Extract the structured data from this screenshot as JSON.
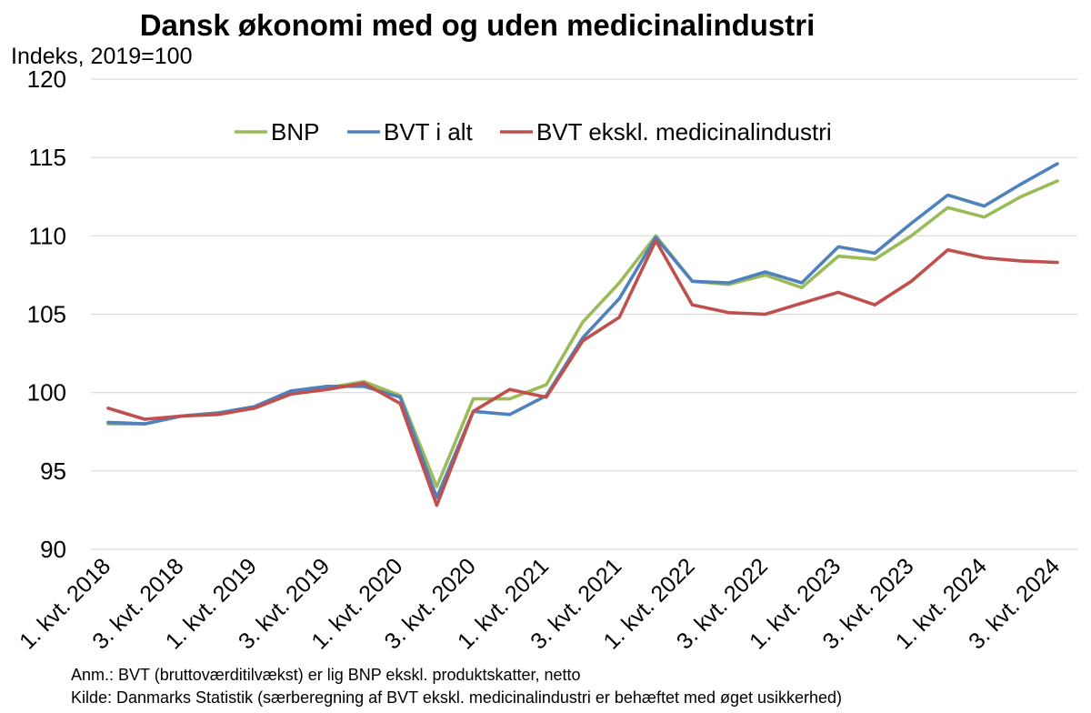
{
  "chart_data": {
    "type": "line",
    "title": "Dansk økonomi med og uden medicinalindustri",
    "ylabel": "Indeks, 2019=100",
    "ylim": [
      90,
      120
    ],
    "yticks": [
      90,
      95,
      100,
      105,
      110,
      115,
      120
    ],
    "grid": true,
    "legend_position": "top-center",
    "categories": [
      "1. kvt. 2018",
      "2. kvt. 2018",
      "3. kvt. 2018",
      "4. kvt. 2018",
      "1. kvt. 2019",
      "2. kvt. 2019",
      "3. kvt. 2019",
      "4. kvt. 2019",
      "1. kvt. 2020",
      "2. kvt. 2020",
      "3. kvt. 2020",
      "4. kvt. 2020",
      "1. kvt. 2021",
      "2. kvt. 2021",
      "3. kvt. 2021",
      "4. kvt. 2021",
      "1. kvt. 2022",
      "2. kvt. 2022",
      "3. kvt. 2022",
      "4. kvt. 2022",
      "1. kvt. 2023",
      "2. kvt. 2023",
      "3. kvt. 2023",
      "4. kvt. 2023",
      "1. kvt. 2024",
      "2. kvt. 2024",
      "3. kvt. 2024"
    ],
    "xtick_labels": [
      "1. kvt. 2018",
      "3. kvt. 2018",
      "1. kvt. 2019",
      "3. kvt. 2019",
      "1. kvt. 2020",
      "3. kvt. 2020",
      "1. kvt. 2021",
      "3. kvt. 2021",
      "1. kvt. 2022",
      "3. kvt. 2022",
      "1. kvt. 2023",
      "3. kvt. 2023",
      "1. kvt. 2024",
      "3. kvt. 2024"
    ],
    "series": [
      {
        "name": "BNP",
        "color": "#9BBB59",
        "values": [
          98.0,
          98.0,
          98.5,
          98.7,
          99.0,
          100.0,
          100.3,
          100.7,
          99.8,
          94.0,
          99.6,
          99.6,
          100.5,
          104.5,
          107.0,
          110.0,
          107.1,
          106.9,
          107.5,
          106.7,
          108.7,
          108.5,
          110.0,
          111.8,
          111.2,
          112.5,
          113.5
        ]
      },
      {
        "name": "BVT i alt",
        "color": "#4F81BD",
        "values": [
          98.1,
          98.0,
          98.5,
          98.7,
          99.1,
          100.1,
          100.4,
          100.4,
          99.7,
          93.3,
          98.8,
          98.6,
          99.8,
          103.5,
          106.0,
          109.9,
          107.1,
          107.0,
          107.7,
          107.0,
          109.3,
          108.9,
          110.8,
          112.6,
          111.9,
          113.3,
          114.6
        ]
      },
      {
        "name": "BVT ekskl. medicinalindustri",
        "color": "#C0504D",
        "values": [
          99.0,
          98.3,
          98.5,
          98.6,
          99.0,
          99.9,
          100.2,
          100.6,
          99.3,
          92.8,
          98.8,
          100.2,
          99.7,
          103.3,
          104.8,
          109.7,
          105.6,
          105.1,
          105.0,
          105.7,
          106.4,
          105.6,
          107.1,
          109.1,
          108.6,
          108.4,
          108.3
        ]
      }
    ]
  },
  "notes": {
    "anm": "Anm.: BVT (bruttoværditilvækst) er lig BNP ekskl. produktskatter, netto",
    "kilde": "Kilde: Danmarks Statistik (særberegning af BVT ekskl. medicinalindustri er behæftet med øget usikkerhed)"
  }
}
